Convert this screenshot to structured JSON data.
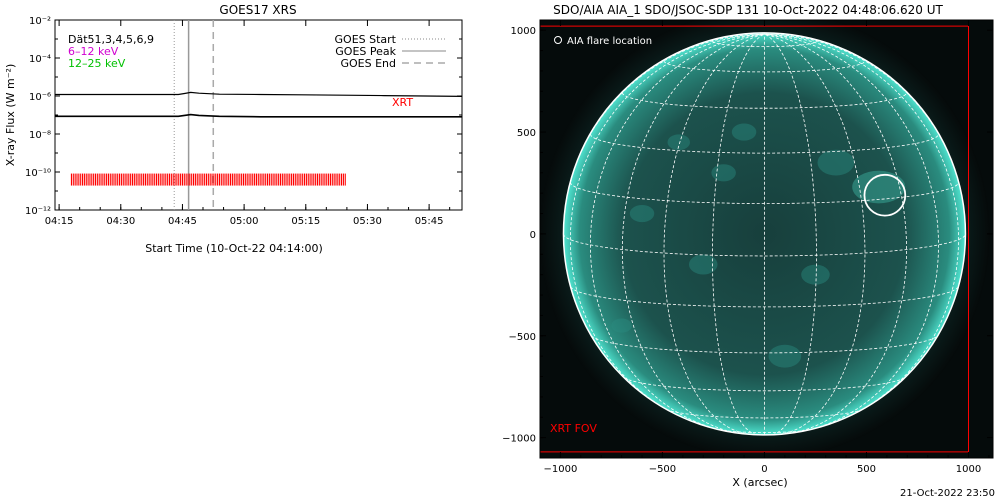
{
  "chart_data": [
    {
      "type": "line",
      "title": "GOES17 XRS",
      "xlabel": "Start Time (10-Oct-22 04:14:00)",
      "ylabel": "X-ray Flux (W m⁻²)",
      "y_scale": "log",
      "ylim": [
        1e-12,
        0.01
      ],
      "xlim_minutes": [
        0,
        99
      ],
      "x_tick_labels": [
        "04:15",
        "04:30",
        "04:45",
        "05:00",
        "05:15",
        "05:30",
        "05:45"
      ],
      "y_tick_labels": [
        "10⁻¹²",
        "10⁻¹⁰",
        "10⁻⁸",
        "10⁻⁶",
        "10⁻⁴",
        "10⁻²"
      ],
      "top_left_legend": [
        {
          "text": "Dät51,3,4,5,6,9",
          "color": "#000000"
        },
        {
          "text": "6–12 keV",
          "color": "#d000d0"
        },
        {
          "text": "12–25 keV",
          "color": "#00c000"
        }
      ],
      "line_legend": [
        {
          "label": "GOES Start",
          "style": "dotted"
        },
        {
          "label": "GOES Peak",
          "style": "solid"
        },
        {
          "label": "GOES End",
          "style": "dashed"
        }
      ],
      "series_annotation": "XRT",
      "series": [
        {
          "x": [
            0,
            10,
            20,
            30,
            31.5,
            33,
            35,
            40,
            50,
            60,
            70,
            80,
            90,
            99
          ],
          "y": [
            1.2e-06,
            1.2e-06,
            1.2e-06,
            1.2e-06,
            1.35e-06,
            1.55e-06,
            1.4e-06,
            1.25e-06,
            1.2e-06,
            1.15e-06,
            1.1e-06,
            1.05e-06,
            1e-06,
            9.5e-07
          ]
        },
        {
          "x": [
            0,
            10,
            20,
            30,
            31.5,
            33,
            35,
            40,
            50,
            60,
            70,
            80,
            90,
            99
          ],
          "y": [
            8.5e-08,
            8.5e-08,
            8.5e-08,
            8.5e-08,
            9.5e-08,
            1.05e-07,
            9.5e-08,
            8.5e-08,
            8e-08,
            8e-08,
            8e-08,
            8e-08,
            8e-08,
            8e-08
          ]
        }
      ],
      "goes_times_minutes": {
        "start": 29.0,
        "peak": 32.5,
        "end": 38.5
      },
      "xrt_obs_range_minutes": [
        4,
        71
      ],
      "xrt_obs_level": 4e-11
    },
    {
      "type": "scatter",
      "title": "SDO/AIA AIA_1 SDO/JSOC-SDP 131 10-Oct-2022 04:48:06.620 UT",
      "xlabel": "X (arcsec)",
      "ylabel": "",
      "xlim": [
        -1100,
        1120
      ],
      "ylim": [
        -1100,
        1050
      ],
      "x_ticks": [
        -1000,
        -500,
        0,
        500,
        1000
      ],
      "x_tick_labels": [
        "−1000",
        "−500",
        "0",
        "500",
        "1000"
      ],
      "y_ticks": [
        -1000,
        -500,
        0,
        500,
        1000
      ],
      "y_tick_labels": [
        "−1000",
        "−500",
        "0",
        "500",
        "1000"
      ],
      "solar_radius_arcsec": 985,
      "flare_location": {
        "x": 590,
        "y": 190,
        "radius": 100
      },
      "legend": "AIA flare location",
      "xrt_fov_label": "XRT FOV",
      "xrt_fov": {
        "x": [
          -1100,
          1000
        ],
        "y": [
          -1070,
          1020
        ]
      },
      "colors": {
        "sun": "#1b5a55",
        "limb": "#2fd6bc",
        "grid": "#ffffff",
        "fov": "#ff0000"
      }
    }
  ],
  "footer_timestamp": "21-Oct-2022 23:50"
}
